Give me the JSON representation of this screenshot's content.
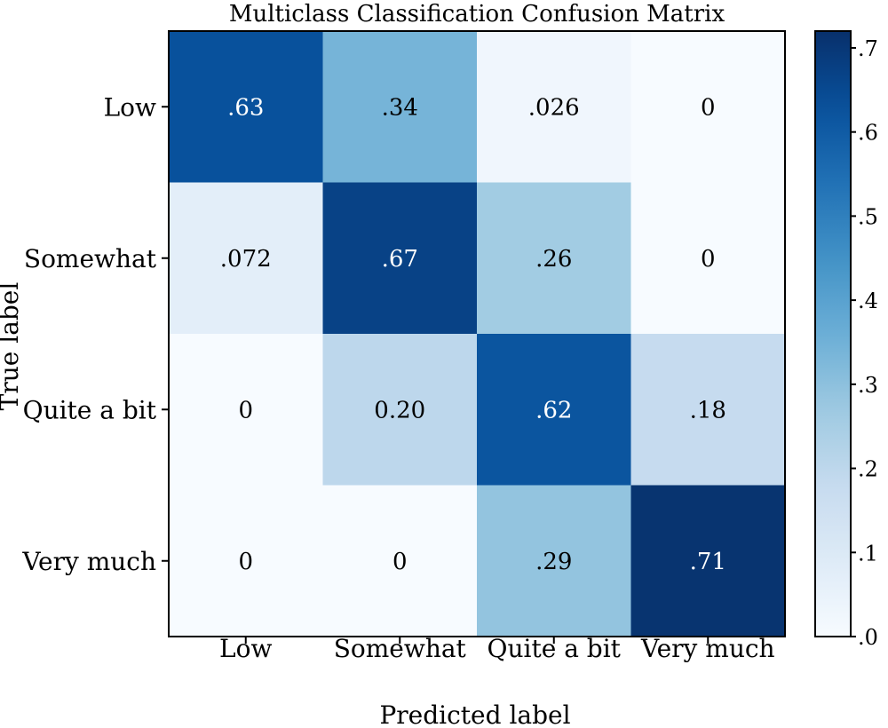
{
  "chart_data": {
    "type": "heatmap",
    "title": "Multiclass Classification Confusion Matrix",
    "xlabel": "Predicted label",
    "ylabel": "True label",
    "x_categories": [
      "Low",
      "Somewhat",
      "Quite a bit",
      "Very much"
    ],
    "y_categories": [
      "Low",
      "Somewhat",
      "Quite a bit",
      "Very much"
    ],
    "values": [
      [
        0.63,
        0.34,
        0.026,
        0
      ],
      [
        0.072,
        0.67,
        0.26,
        0
      ],
      [
        0,
        0.2,
        0.62,
        0.18
      ],
      [
        0,
        0,
        0.29,
        0.71
      ]
    ],
    "cell_labels": [
      [
        ".63",
        ".34",
        ".026",
        "0"
      ],
      [
        ".072",
        ".67",
        ".26",
        "0"
      ],
      [
        "0",
        "0.20",
        ".62",
        ".18"
      ],
      [
        "0",
        "0",
        ".29",
        ".71"
      ]
    ],
    "colormap": "Blues",
    "colorbar": {
      "min": 0,
      "max": 0.72,
      "ticks": [
        0,
        0.1,
        0.2,
        0.3,
        0.4,
        0.5,
        0.6,
        0.7
      ],
      "tick_labels": [
        ".0",
        ".1",
        ".2",
        ".3",
        ".4",
        ".5",
        ".6",
        ".7"
      ]
    }
  }
}
